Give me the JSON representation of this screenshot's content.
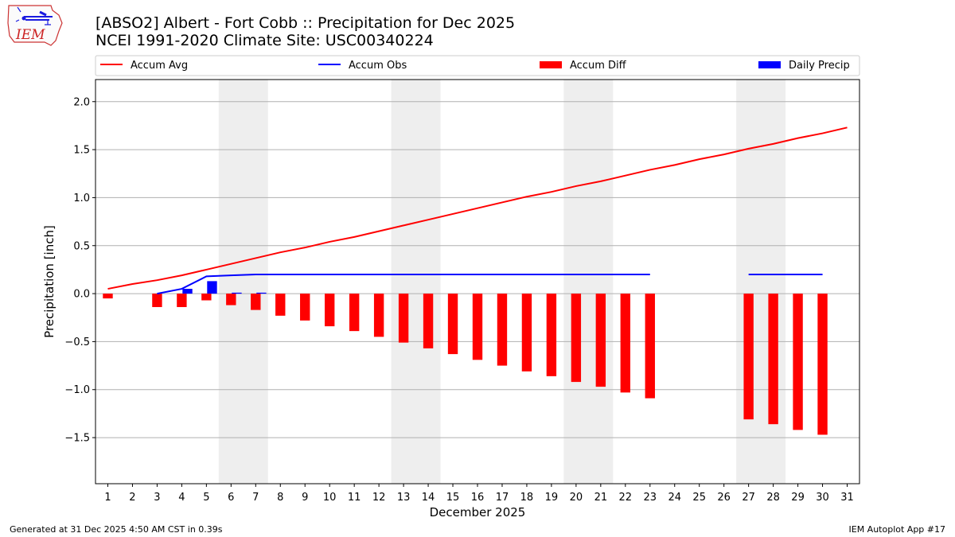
{
  "header": {
    "title_line1": "[ABSO2] Albert - Fort Cobb :: Precipitation for Dec 2025",
    "title_line2": "NCEI 1991-2020 Climate Site: USC00340224"
  },
  "logo": {
    "text": "IEM",
    "icon": "iem-logo"
  },
  "footer": {
    "left": "Generated at 31 Dec 2025 4:50 AM CST in 0.39s",
    "right": "IEM Autoplot App #17"
  },
  "chart_data": {
    "type": "bar",
    "xlabel": "December 2025",
    "ylabel": "Precipitation [inch]",
    "ylim": [
      -1.98,
      2.23
    ],
    "xlim": [
      0.5,
      31.5
    ],
    "yticks": [
      -1.5,
      -1.0,
      -0.5,
      0.0,
      0.5,
      1.0,
      1.5,
      2.0
    ],
    "ytick_labels": [
      "−1.5",
      "−1.0",
      "−0.5",
      "0.0",
      "0.5",
      "1.0",
      "1.5",
      "2.0"
    ],
    "xticks": [
      1,
      2,
      3,
      4,
      5,
      6,
      7,
      8,
      9,
      10,
      11,
      12,
      13,
      14,
      15,
      16,
      17,
      18,
      19,
      20,
      21,
      22,
      23,
      24,
      25,
      26,
      27,
      28,
      29,
      30,
      31
    ],
    "grid": "horizontal",
    "legend_position": "top",
    "weekend_shading": [
      [
        5.5,
        7.5
      ],
      [
        12.5,
        14.5
      ],
      [
        19.5,
        21.5
      ],
      [
        26.5,
        28.5
      ]
    ],
    "colors": {
      "avg": "#ff0000",
      "obs": "#0000ff",
      "diff": "#ff0000",
      "daily": "#0000ff",
      "shade": "#eeeeee",
      "grid": "#b0b0b0"
    },
    "series": [
      {
        "name": "Accum Avg",
        "kind": "line",
        "x": [
          1,
          2,
          3,
          4,
          5,
          6,
          7,
          8,
          9,
          10,
          11,
          12,
          13,
          14,
          15,
          16,
          17,
          18,
          19,
          20,
          21,
          22,
          23,
          24,
          25,
          26,
          27,
          28,
          29,
          30,
          31
        ],
        "values": [
          0.05,
          0.1,
          0.14,
          0.19,
          0.25,
          0.31,
          0.37,
          0.43,
          0.48,
          0.54,
          0.59,
          0.65,
          0.71,
          0.77,
          0.83,
          0.89,
          0.95,
          1.01,
          1.06,
          1.12,
          1.17,
          1.23,
          1.29,
          1.34,
          1.4,
          1.45,
          1.51,
          1.56,
          1.62,
          1.67,
          1.73
        ]
      },
      {
        "name": "Accum Obs",
        "kind": "line",
        "segments": [
          {
            "x": [
              3,
              4,
              5,
              6,
              7,
              8,
              9,
              10,
              11,
              12,
              13,
              14,
              15,
              16,
              17,
              18,
              19,
              20,
              21,
              22,
              23
            ],
            "values": [
              0.0,
              0.05,
              0.18,
              0.19,
              0.2,
              0.2,
              0.2,
              0.2,
              0.2,
              0.2,
              0.2,
              0.2,
              0.2,
              0.2,
              0.2,
              0.2,
              0.2,
              0.2,
              0.2,
              0.2,
              0.2
            ]
          },
          {
            "x": [
              27,
              28,
              29,
              30
            ],
            "values": [
              0.2,
              0.2,
              0.2,
              0.2
            ]
          }
        ]
      },
      {
        "name": "Accum Diff",
        "kind": "bar",
        "x": [
          1,
          3,
          4,
          5,
          6,
          7,
          8,
          9,
          10,
          11,
          12,
          13,
          14,
          15,
          16,
          17,
          18,
          19,
          20,
          21,
          22,
          23,
          27,
          28,
          29,
          30
        ],
        "values": [
          -0.05,
          -0.14,
          -0.14,
          -0.07,
          -0.12,
          -0.17,
          -0.23,
          -0.28,
          -0.34,
          -0.39,
          -0.45,
          -0.51,
          -0.57,
          -0.63,
          -0.69,
          -0.75,
          -0.81,
          -0.86,
          -0.92,
          -0.97,
          -1.03,
          -1.09,
          -1.31,
          -1.36,
          -1.42,
          -1.47
        ]
      },
      {
        "name": "Daily Precip",
        "kind": "bar",
        "x": [
          4,
          5,
          6,
          7
        ],
        "values": [
          0.05,
          0.13,
          0.01,
          0.01
        ]
      }
    ]
  }
}
